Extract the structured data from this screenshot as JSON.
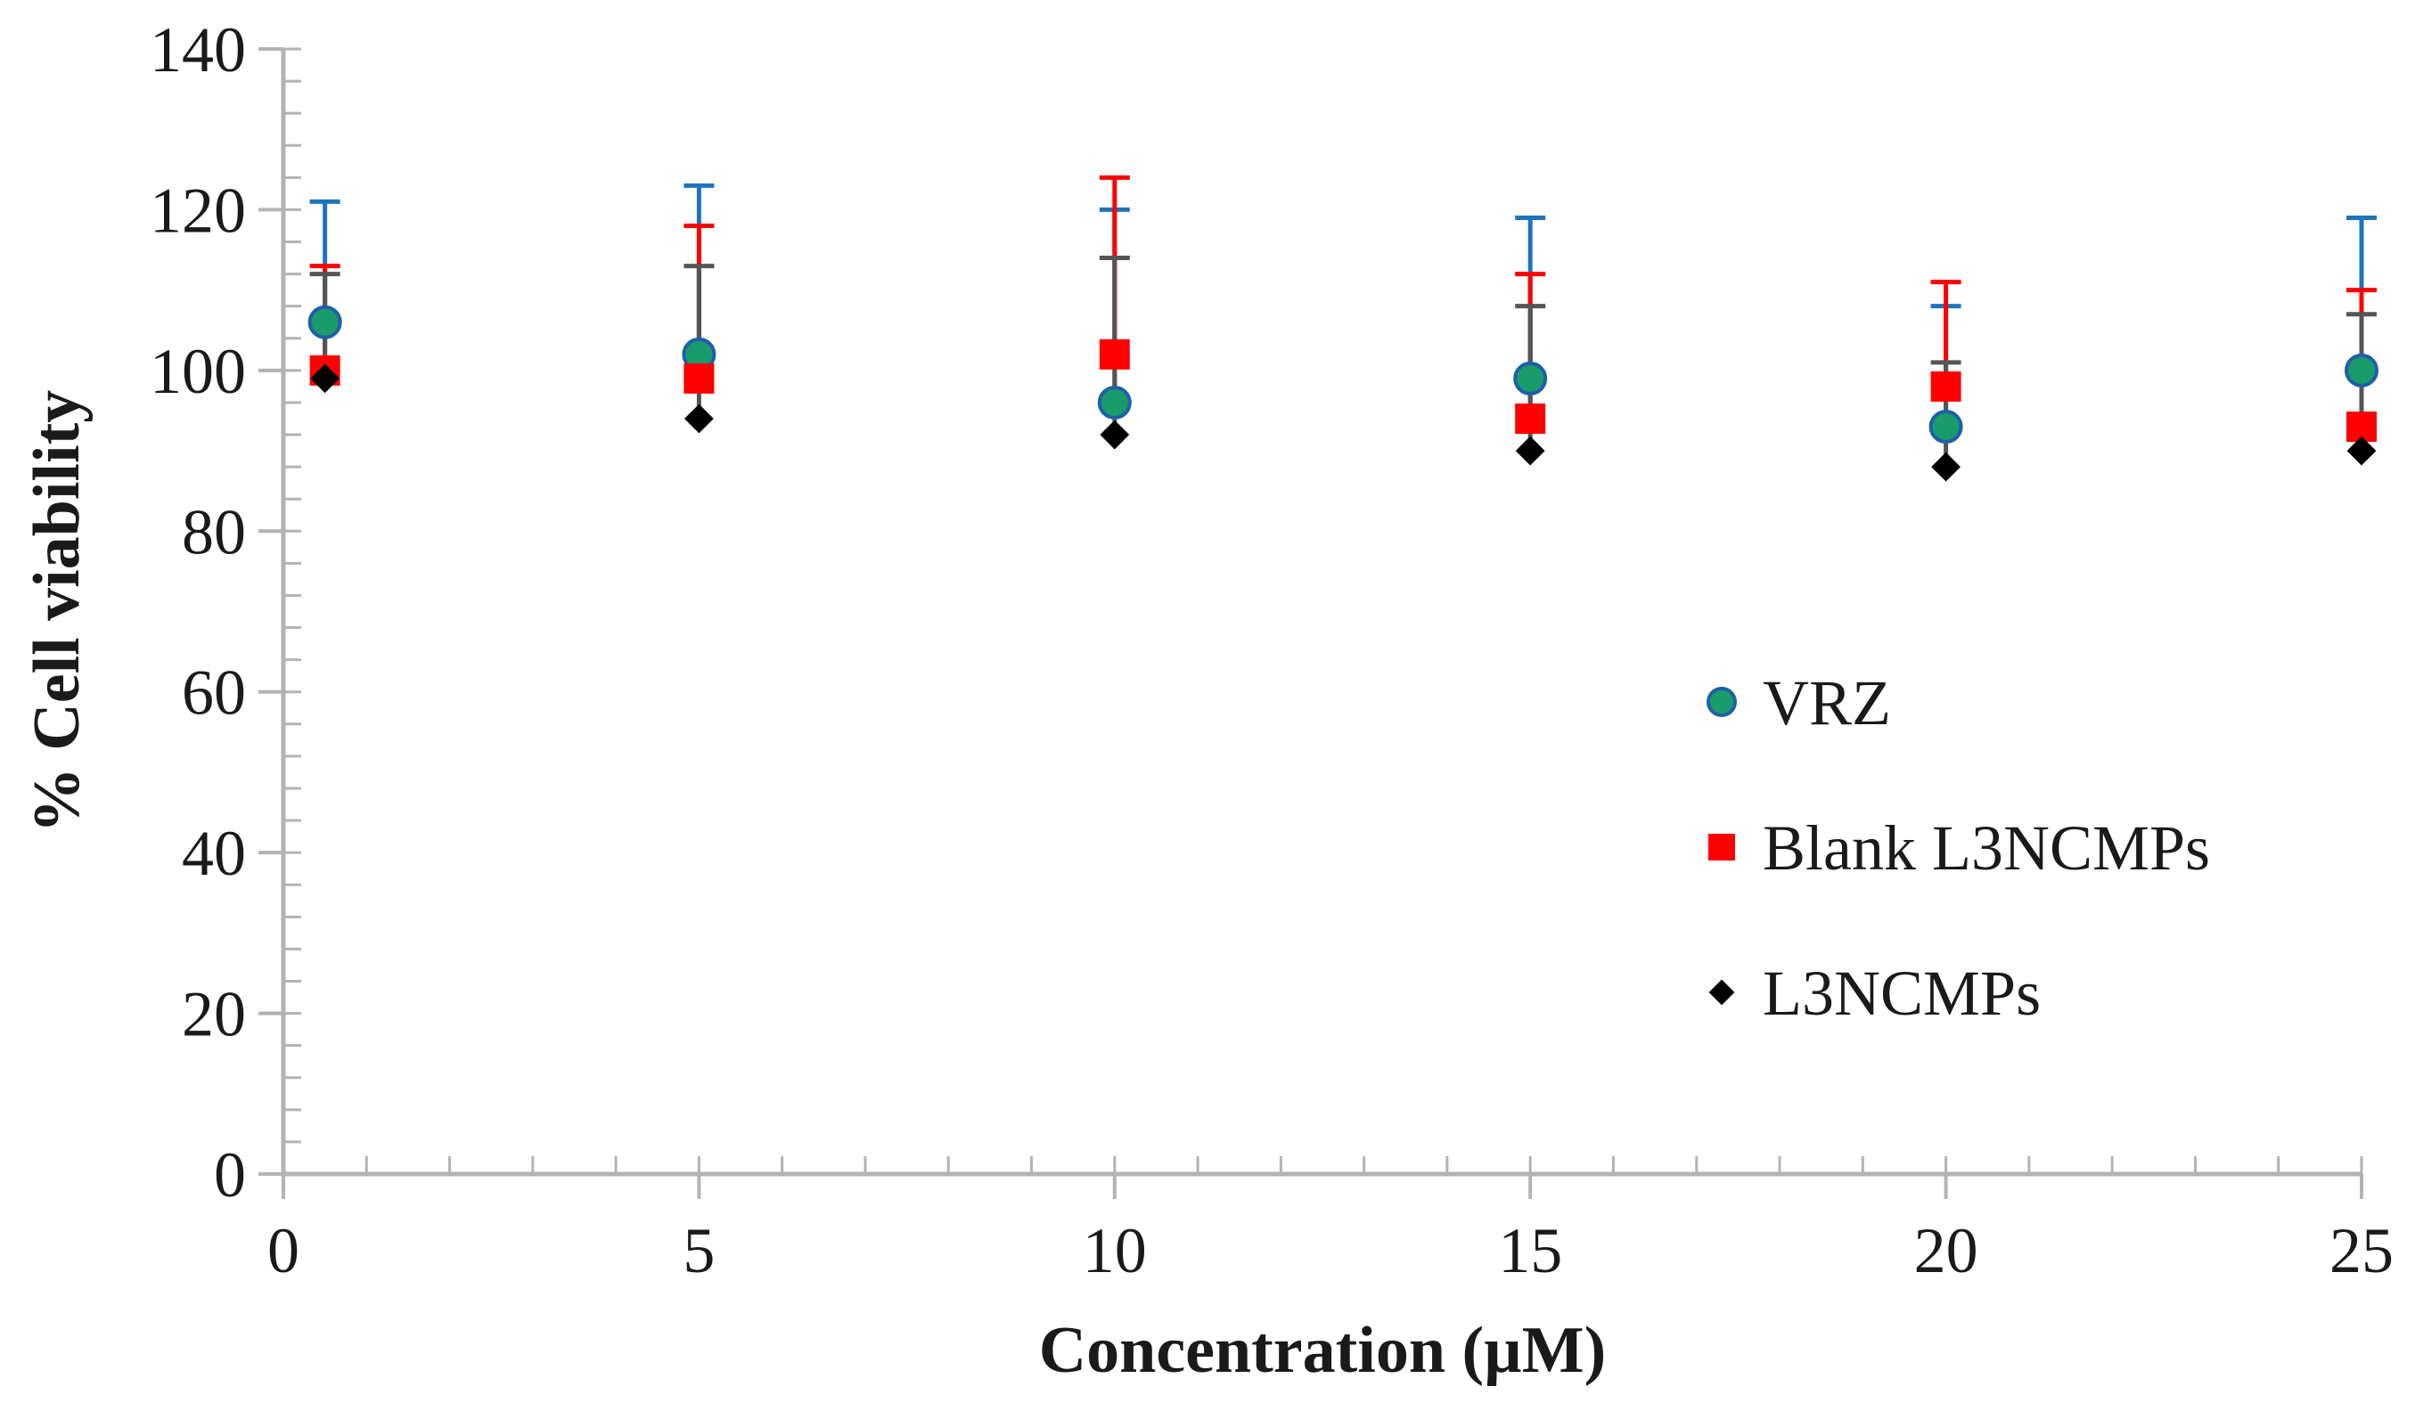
{
  "chart_data": {
    "type": "scatter",
    "title": "",
    "xlabel": "Concentration (µM)",
    "ylabel": "% Cell viability",
    "xlim": [
      0,
      25
    ],
    "ylim": [
      0,
      140
    ],
    "x_ticks": [
      0,
      5,
      10,
      15,
      20,
      25
    ],
    "y_ticks": [
      0,
      20,
      40,
      60,
      80,
      100,
      120,
      140
    ],
    "x_ticks_labels": [
      "0",
      "5",
      "10",
      "15",
      "20",
      "25"
    ],
    "y_ticks_labels": [
      "0",
      "20",
      "40",
      "60",
      "80",
      "100",
      "120",
      "140"
    ],
    "x_minor_step": 1,
    "y_minor_step": 4,
    "grid": false,
    "legend_position": "right",
    "series": [
      {
        "name": "VRZ",
        "marker": "circle",
        "color": "#1a9b6b",
        "edge_color": "#1f5fa8",
        "error_color": "#1e73be",
        "x": [
          0.5,
          5,
          10,
          15,
          20,
          25
        ],
        "values": [
          106,
          102,
          96,
          99,
          93,
          100
        ],
        "error_upper": [
          121,
          123,
          120,
          119,
          108,
          119
        ]
      },
      {
        "name": "Blank L3NCMPs",
        "marker": "square",
        "color": "#ff0000",
        "edge_color": "#ff0000",
        "error_color": "#ff0000",
        "x": [
          0.5,
          5,
          10,
          15,
          20,
          25
        ],
        "values": [
          100,
          99,
          102,
          94,
          98,
          93
        ],
        "error_upper": [
          113,
          118,
          124,
          112,
          111,
          110
        ]
      },
      {
        "name": "L3NCMPs",
        "marker": "diamond",
        "color": "#000000",
        "edge_color": "#000000",
        "error_color": "#555555",
        "x": [
          0.5,
          5,
          10,
          15,
          20,
          25
        ],
        "values": [
          99,
          94,
          92,
          90,
          88,
          90
        ],
        "error_upper": [
          112,
          113,
          114,
          108,
          101,
          107
        ]
      }
    ]
  }
}
